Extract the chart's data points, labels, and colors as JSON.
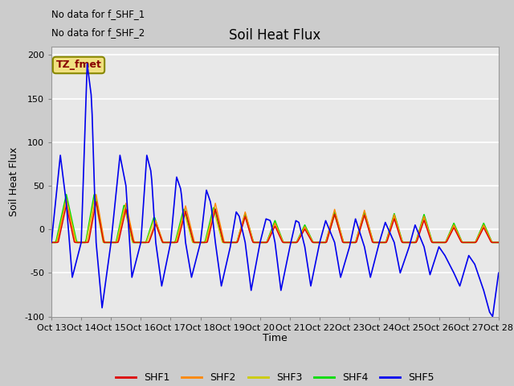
{
  "title": "Soil Heat Flux",
  "ylabel": "Soil Heat Flux",
  "xlabel": "Time",
  "no_data_text_1": "No data for f_SHF_1",
  "no_data_text_2": "No data for f_SHF_2",
  "tz_label": "TZ_fmet",
  "ylim": [
    -100,
    210
  ],
  "yticks": [
    -100,
    -50,
    0,
    50,
    100,
    150,
    200
  ],
  "bg_color": "#cccccc",
  "plot_bg_color": "#e8e8e8",
  "legend_entries": [
    "SHF1",
    "SHF2",
    "SHF3",
    "SHF4",
    "SHF5"
  ],
  "line_colors": [
    "#dd0000",
    "#ff8800",
    "#cccc00",
    "#00dd00",
    "#0000ee"
  ],
  "x_tick_labels": [
    "Oct 13",
    "Oct 14",
    "Oct 15",
    "Oct 16",
    "Oct 17",
    "Oct 18",
    "Oct 19",
    "Oct 20",
    "Oct 21",
    "Oct 22",
    "Oct 23",
    "Oct 24",
    "Oct 25",
    "Oct 26",
    "Oct 27",
    "Oct 28"
  ],
  "n_days": 15
}
